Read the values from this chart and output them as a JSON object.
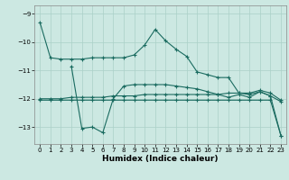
{
  "xlabel": "Humidex (Indice chaleur)",
  "xlim": [
    -0.5,
    23.5
  ],
  "ylim": [
    -13.6,
    -8.7
  ],
  "yticks": [
    -13,
    -12,
    -11,
    -10,
    -9
  ],
  "xticks": [
    0,
    1,
    2,
    3,
    4,
    5,
    6,
    7,
    8,
    9,
    10,
    11,
    12,
    13,
    14,
    15,
    16,
    17,
    18,
    19,
    20,
    21,
    22,
    23
  ],
  "bg_color": "#cce8e2",
  "grid_color": "#aad0c8",
  "line_color": "#1a6b60",
  "line1_x": [
    0,
    1,
    2,
    3,
    4,
    5,
    6,
    7,
    8,
    9,
    10,
    11,
    12,
    13,
    14,
    15,
    16,
    17,
    18,
    19,
    20,
    21,
    22,
    23
  ],
  "line1_y": [
    -9.3,
    -10.55,
    -10.6,
    -10.6,
    -10.6,
    -10.55,
    -10.55,
    -10.55,
    -10.55,
    -10.45,
    -10.1,
    -9.55,
    -9.95,
    -10.25,
    -10.5,
    -11.05,
    -11.15,
    -11.25,
    -11.25,
    -11.8,
    -11.85,
    -11.75,
    -11.9,
    -12.1
  ],
  "line2_x": [
    0,
    1,
    2,
    3,
    4,
    5,
    6,
    7,
    8,
    9,
    10,
    11,
    12,
    13,
    14,
    15,
    16,
    17,
    18,
    19,
    20,
    21,
    22,
    23
  ],
  "line2_y": [
    -12.0,
    -12.0,
    -12.0,
    -11.95,
    -11.95,
    -11.95,
    -11.95,
    -11.9,
    -11.9,
    -11.9,
    -11.85,
    -11.85,
    -11.85,
    -11.85,
    -11.85,
    -11.85,
    -11.85,
    -11.85,
    -11.8,
    -11.8,
    -11.8,
    -11.7,
    -11.8,
    -12.05
  ],
  "line3_x": [
    3,
    4,
    5,
    6,
    7,
    8,
    9,
    10,
    11,
    12,
    13,
    14,
    15,
    16,
    17,
    18,
    19,
    20,
    21,
    22,
    23
  ],
  "line3_y": [
    -10.85,
    -13.05,
    -13.0,
    -13.2,
    -12.0,
    -11.55,
    -11.5,
    -11.5,
    -11.5,
    -11.5,
    -11.55,
    -11.6,
    -11.65,
    -11.75,
    -11.85,
    -11.95,
    -11.85,
    -11.95,
    -11.75,
    -11.9,
    -13.3
  ],
  "line4_x": [
    0,
    1,
    2,
    3,
    4,
    5,
    6,
    7,
    8,
    9,
    10,
    11,
    12,
    13,
    14,
    15,
    16,
    17,
    18,
    19,
    20,
    21,
    22,
    23
  ],
  "line4_y": [
    -12.05,
    -12.05,
    -12.05,
    -12.05,
    -12.05,
    -12.05,
    -12.05,
    -12.05,
    -12.05,
    -12.05,
    -12.05,
    -12.05,
    -12.05,
    -12.05,
    -12.05,
    -12.05,
    -12.05,
    -12.05,
    -12.05,
    -12.05,
    -12.05,
    -12.05,
    -12.05,
    -13.3
  ]
}
